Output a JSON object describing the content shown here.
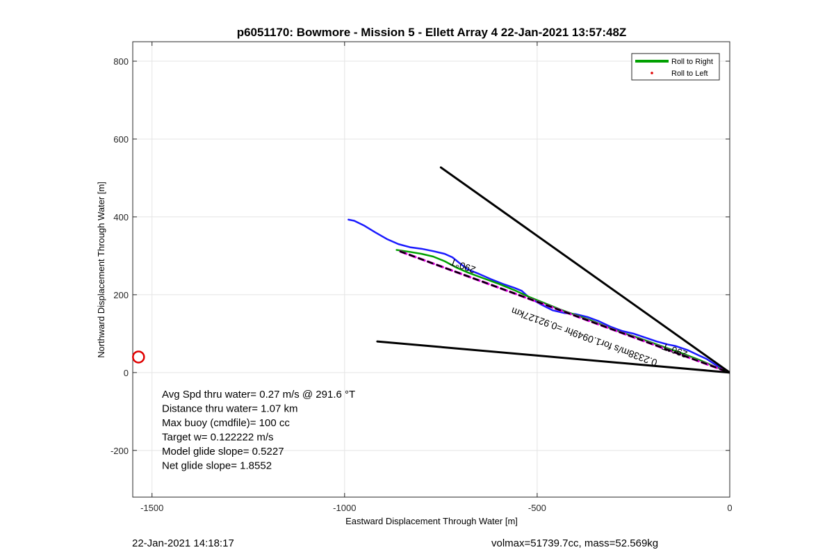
{
  "chart_data": {
    "type": "line",
    "title": "p6051170: Bowmore - Mission 5 - Ellett Array 4 22-Jan-2021 13:57:48Z",
    "xlabel": "Eastward Displacement Through Water [m]",
    "ylabel": "Northward Displacement Through Water [m]",
    "xlim": [
      -1550,
      0
    ],
    "ylim": [
      -320,
      850
    ],
    "xticks": [
      -1500,
      -1000,
      -500,
      0
    ],
    "yticks": [
      -200,
      0,
      200,
      400,
      600,
      800
    ],
    "grid": true,
    "legend": {
      "position": "top-right",
      "entries": [
        {
          "label": "Roll to Right",
          "color": "#00a000",
          "style": "line"
        },
        {
          "label": "Roll to Left",
          "color": "#e00000",
          "style": "dot"
        }
      ]
    },
    "series": [
      {
        "color": "#1a1aff",
        "x": [
          -990,
          -975,
          -950,
          -920,
          -890,
          -860,
          -830,
          -800,
          -770,
          -740,
          -720,
          -700,
          -680,
          -650,
          -620,
          -590,
          -560,
          -540,
          -520,
          -490,
          -460,
          -430,
          -400,
          -370,
          -340,
          -310,
          -280,
          -250,
          -220,
          -190,
          -160,
          -140,
          -110,
          -80,
          -60,
          -40,
          -20,
          0
        ],
        "y": [
          393,
          390,
          378,
          360,
          343,
          330,
          322,
          318,
          312,
          305,
          296,
          280,
          265,
          253,
          240,
          228,
          218,
          210,
          192,
          175,
          160,
          153,
          150,
          143,
          132,
          118,
          107,
          100,
          90,
          80,
          72,
          68,
          58,
          44,
          35,
          22,
          10,
          0
        ]
      },
      {
        "color": "#00a000",
        "x": [
          -865,
          -830,
          -800,
          -770,
          -740,
          -710,
          -680,
          -650,
          -600,
          -560,
          -520,
          -480,
          -440,
          -400,
          -360,
          -320,
          -280,
          -240,
          -200,
          -160,
          -120,
          -80,
          -40,
          0
        ],
        "y": [
          315,
          310,
          305,
          298,
          286,
          270,
          257,
          246,
          228,
          212,
          194,
          178,
          162,
          148,
          134,
          118,
          103,
          90,
          76,
          62,
          48,
          33,
          16,
          0
        ]
      },
      {
        "color": "#e000e0",
        "dash": "dashed",
        "x": [
          -855,
          0
        ],
        "y": [
          311,
          0
        ]
      },
      {
        "color": "#000000",
        "dash": "dashed",
        "x": [
          -855,
          0
        ],
        "y": [
          311,
          0
        ]
      },
      {
        "color": "#000000",
        "x": [
          -750,
          0
        ],
        "y": [
          527,
          0
        ]
      },
      {
        "color": "#000000",
        "x": [
          -915,
          0
        ],
        "y": [
          80,
          0
        ]
      }
    ],
    "annotations": [
      {
        "text": "290°T",
        "x": -690,
        "y": 282,
        "rotation": 20
      },
      {
        "text": "290°T",
        "x": -140,
        "y": 65,
        "rotation": 20
      },
      {
        "text": "0.2338m/s for1.0949hr =0.92127km",
        "x": -375,
        "y": 100,
        "rotation": 20
      }
    ],
    "marker": {
      "type": "circle",
      "color": "#e00000",
      "x": -1535,
      "y": 40
    },
    "stats": [
      "Avg Spd thru water=  0.27 m/s @ 291.6 °T",
      "Distance thru water=  1.07 km",
      "Max buoy (cmdfile)= 100 cc",
      "Target w= 0.122222 m/s",
      "Model glide slope= 0.5227",
      "Net glide slope= 1.8552"
    ]
  },
  "footer": {
    "timestamp": "22-Jan-2021 14:18:17",
    "volmass": "volmax=51739.7cc, mass=52.569kg"
  }
}
